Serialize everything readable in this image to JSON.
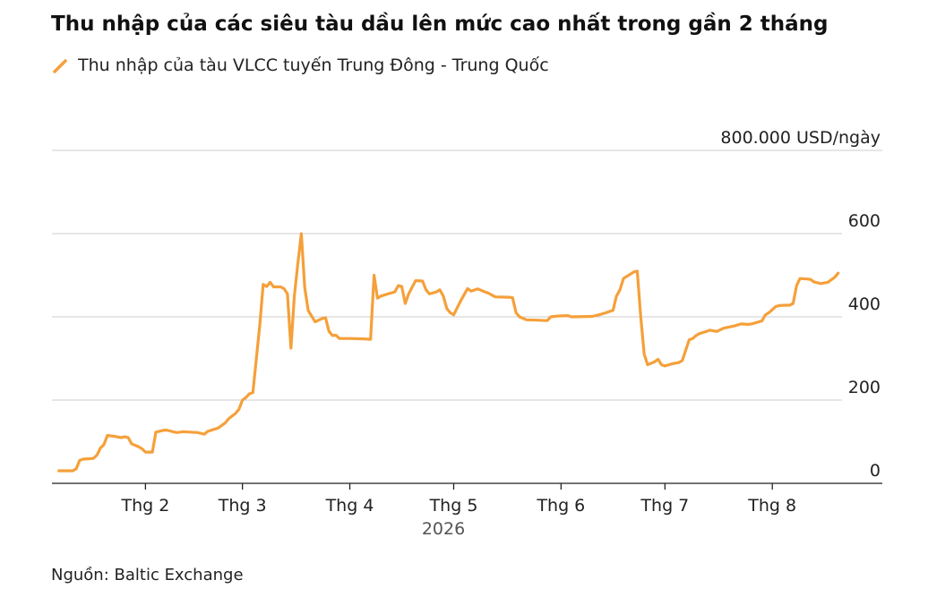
{
  "chart_data": {
    "type": "line",
    "title": "Thu nhập của các siêu tàu dầu lên mức cao nhất trong gần 2 tháng",
    "unit_label": "800.000 USD/ngày",
    "year_label": "2026",
    "ylim": [
      0,
      800
    ],
    "yticks": [
      {
        "value": 0,
        "label": "0"
      },
      {
        "value": 200,
        "label": "200"
      },
      {
        "value": 400,
        "label": "400"
      },
      {
        "value": 600,
        "label": "600"
      }
    ],
    "xlim": [
      "2026-01-05",
      "2026-08-25"
    ],
    "xticks": [
      {
        "date": "2026-02-01",
        "label": "Thg 2"
      },
      {
        "date": "2026-03-01",
        "label": "Thg 3"
      },
      {
        "date": "2026-04-01",
        "label": "Thg 4"
      },
      {
        "date": "2026-05-01",
        "label": "Thg 5"
      },
      {
        "date": "2026-06-01",
        "label": "Thg 6"
      },
      {
        "date": "2026-07-01",
        "label": "Thg 7"
      },
      {
        "date": "2026-08-01",
        "label": "Thg 8"
      }
    ],
    "grid": true,
    "legend_position": "top-left",
    "series": [
      {
        "name": "Thu nhập của tàu VLCC tuyến Trung Đông - Trung Quốc",
        "color": "#F5A03A",
        "points": [
          [
            "2026-01-07",
            30
          ],
          [
            "2026-01-11",
            30
          ],
          [
            "2026-01-12",
            35
          ],
          [
            "2026-01-13",
            55
          ],
          [
            "2026-01-14",
            58
          ],
          [
            "2026-01-17",
            60
          ],
          [
            "2026-01-18",
            68
          ],
          [
            "2026-01-19",
            85
          ],
          [
            "2026-01-20",
            93
          ],
          [
            "2026-01-21",
            115
          ],
          [
            "2026-01-23",
            113
          ],
          [
            "2026-01-25",
            110
          ],
          [
            "2026-01-26",
            112
          ],
          [
            "2026-01-27",
            110
          ],
          [
            "2026-01-28",
            95
          ],
          [
            "2026-01-30",
            88
          ],
          [
            "2026-01-31",
            83
          ],
          [
            "2026-02-01",
            75
          ],
          [
            "2026-02-03",
            75
          ],
          [
            "2026-02-04",
            123
          ],
          [
            "2026-02-06",
            127
          ],
          [
            "2026-02-07",
            128
          ],
          [
            "2026-02-10",
            122
          ],
          [
            "2026-02-12",
            124
          ],
          [
            "2026-02-16",
            122
          ],
          [
            "2026-02-18",
            118
          ],
          [
            "2026-02-19",
            125
          ],
          [
            "2026-02-22",
            133
          ],
          [
            "2026-02-24",
            145
          ],
          [
            "2026-02-25",
            155
          ],
          [
            "2026-02-27",
            168
          ],
          [
            "2026-02-28",
            178
          ],
          [
            "2026-03-01",
            200
          ],
          [
            "2026-03-02",
            206
          ],
          [
            "2026-03-03",
            215
          ],
          [
            "2026-03-04",
            218
          ],
          [
            "2026-03-06",
            380
          ],
          [
            "2026-03-07",
            478
          ],
          [
            "2026-03-08",
            473
          ],
          [
            "2026-03-09",
            483
          ],
          [
            "2026-03-10",
            472
          ],
          [
            "2026-03-12",
            472
          ],
          [
            "2026-03-13",
            468
          ],
          [
            "2026-03-14",
            455
          ],
          [
            "2026-03-15",
            325
          ],
          [
            "2026-03-16",
            450
          ],
          [
            "2026-03-17",
            528
          ],
          [
            "2026-03-18",
            600
          ],
          [
            "2026-03-19",
            470
          ],
          [
            "2026-03-20",
            415
          ],
          [
            "2026-03-22",
            388
          ],
          [
            "2026-03-23",
            392
          ],
          [
            "2026-03-24",
            396
          ],
          [
            "2026-03-25",
            398
          ],
          [
            "2026-03-26",
            365
          ],
          [
            "2026-03-27",
            355
          ],
          [
            "2026-03-28",
            356
          ],
          [
            "2026-03-29",
            348
          ],
          [
            "2026-04-01",
            348
          ],
          [
            "2026-04-05",
            347
          ],
          [
            "2026-04-07",
            346
          ],
          [
            "2026-04-08",
            500
          ],
          [
            "2026-04-09",
            445
          ],
          [
            "2026-04-10",
            450
          ],
          [
            "2026-04-12",
            455
          ],
          [
            "2026-04-14",
            460
          ],
          [
            "2026-04-15",
            475
          ],
          [
            "2026-04-16",
            473
          ],
          [
            "2026-04-17",
            432
          ],
          [
            "2026-04-18",
            455
          ],
          [
            "2026-04-20",
            487
          ],
          [
            "2026-04-22",
            486
          ],
          [
            "2026-04-23",
            465
          ],
          [
            "2026-04-24",
            455
          ],
          [
            "2026-04-26",
            460
          ],
          [
            "2026-04-27",
            465
          ],
          [
            "2026-04-28",
            450
          ],
          [
            "2026-04-29",
            420
          ],
          [
            "2026-04-30",
            410
          ],
          [
            "2026-05-01",
            405
          ],
          [
            "2026-05-03",
            438
          ],
          [
            "2026-05-05",
            468
          ],
          [
            "2026-05-06",
            462
          ],
          [
            "2026-05-08",
            467
          ],
          [
            "2026-05-10",
            460
          ],
          [
            "2026-05-11",
            457
          ],
          [
            "2026-05-13",
            448
          ],
          [
            "2026-05-17",
            447
          ],
          [
            "2026-05-18",
            446
          ],
          [
            "2026-05-19",
            410
          ],
          [
            "2026-05-20",
            400
          ],
          [
            "2026-05-22",
            393
          ],
          [
            "2026-05-25",
            392
          ],
          [
            "2026-05-28",
            391
          ],
          [
            "2026-05-29",
            400
          ],
          [
            "2026-05-31",
            402
          ],
          [
            "2026-06-03",
            403
          ],
          [
            "2026-06-04",
            400
          ],
          [
            "2026-06-10",
            401
          ],
          [
            "2026-06-12",
            405
          ],
          [
            "2026-06-14",
            410
          ],
          [
            "2026-06-16",
            416
          ],
          [
            "2026-06-17",
            450
          ],
          [
            "2026-06-18",
            465
          ],
          [
            "2026-06-19",
            492
          ],
          [
            "2026-06-22",
            508
          ],
          [
            "2026-06-23",
            510
          ],
          [
            "2026-06-24",
            400
          ],
          [
            "2026-06-25",
            310
          ],
          [
            "2026-06-26",
            285
          ],
          [
            "2026-06-28",
            292
          ],
          [
            "2026-06-29",
            298
          ],
          [
            "2026-06-30",
            285
          ],
          [
            "2026-07-01",
            282
          ],
          [
            "2026-07-03",
            287
          ],
          [
            "2026-07-05",
            290
          ],
          [
            "2026-07-06",
            295
          ],
          [
            "2026-07-08",
            345
          ],
          [
            "2026-07-09",
            348
          ],
          [
            "2026-07-10",
            355
          ],
          [
            "2026-07-11",
            360
          ],
          [
            "2026-07-13",
            365
          ],
          [
            "2026-07-14",
            368
          ],
          [
            "2026-07-16",
            365
          ],
          [
            "2026-07-18",
            373
          ],
          [
            "2026-07-21",
            378
          ],
          [
            "2026-07-23",
            383
          ],
          [
            "2026-07-25",
            382
          ],
          [
            "2026-07-26",
            383
          ],
          [
            "2026-07-29",
            390
          ],
          [
            "2026-07-30",
            405
          ],
          [
            "2026-07-31",
            410
          ],
          [
            "2026-08-02",
            425
          ],
          [
            "2026-08-03",
            427
          ],
          [
            "2026-08-05",
            428
          ],
          [
            "2026-08-06",
            428
          ],
          [
            "2026-08-07",
            432
          ],
          [
            "2026-08-08",
            475
          ],
          [
            "2026-08-09",
            492
          ],
          [
            "2026-08-11",
            491
          ],
          [
            "2026-08-12",
            490
          ],
          [
            "2026-08-13",
            484
          ],
          [
            "2026-08-15",
            480
          ],
          [
            "2026-08-17",
            483
          ],
          [
            "2026-08-19",
            495
          ],
          [
            "2026-08-20",
            505
          ]
        ]
      }
    ]
  },
  "source": "Nguồn: Baltic Exchange"
}
